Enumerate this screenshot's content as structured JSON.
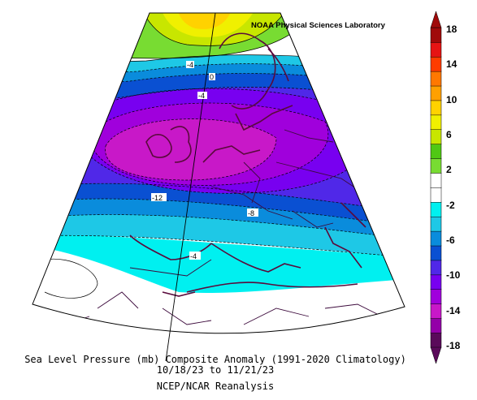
{
  "credit": "NOAA Physical Sciences Laboratory",
  "title": {
    "line1": "Sea Level Pressure (mb) Composite Anomaly (1991-2020 Climatology)",
    "line2": "10/18/23  to 11/21/23",
    "line3": "NCEP/NCAR Reanalysis"
  },
  "contour_labels": [
    "-4",
    "0",
    "-4",
    "-12",
    "-8",
    "-4"
  ],
  "colorbar": {
    "ticks": [
      "18",
      "14",
      "10",
      "6",
      "2",
      "-2",
      "-6",
      "-10",
      "-14",
      "-18"
    ],
    "colors": [
      "#5a0a5a",
      "#9400a8",
      "#c818c8",
      "#a000dc",
      "#7800f0",
      "#5028e8",
      "#0a50d2",
      "#0a8cdc",
      "#1ec8e6",
      "#00f0f0",
      "#ffffff",
      "#ffffff",
      "#78dc32",
      "#50c814",
      "#c8e600",
      "#f0f000",
      "#ffd200",
      "#ffa000",
      "#ff7800",
      "#ff3c00",
      "#e61414",
      "#a00a0a"
    ]
  },
  "colors": {
    "land": "#5a0a3c",
    "boundary": "#3c0a3c"
  }
}
